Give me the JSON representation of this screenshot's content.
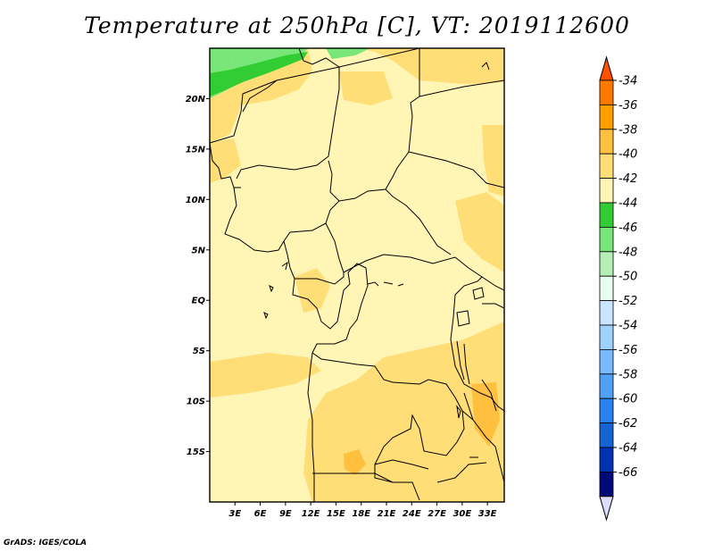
{
  "title": "Temperature at 250hPa [C], VT: 2019112600",
  "footer": "GrADS: IGES/COLA",
  "map": {
    "lon_range": [
      0,
      35
    ],
    "lat_range": [
      -20,
      25
    ],
    "lat_labels": [
      "20N",
      "15N",
      "10N",
      "5N",
      "EQ",
      "5S",
      "10S",
      "15S"
    ],
    "lat_values": [
      20,
      15,
      10,
      5,
      0,
      -5,
      -10,
      -15
    ],
    "lon_labels": [
      "3E",
      "6E",
      "9E",
      "12E",
      "15E",
      "18E",
      "21E",
      "24E",
      "27E",
      "30E",
      "33E"
    ],
    "lon_values": [
      3,
      6,
      9,
      12,
      15,
      18,
      21,
      24,
      27,
      30,
      33
    ],
    "dominant_range_C": [
      -44,
      -42
    ],
    "warmer_zones_C": [
      -42,
      -40
    ],
    "warmest_patch_C": [
      -40,
      -38
    ],
    "coldest_region": "northwest corner, -48 to -44 C"
  },
  "colorbar": {
    "labels": [
      "-34",
      "-36",
      "-38",
      "-40",
      "-42",
      "-44",
      "-46",
      "-48",
      "-50",
      "-52",
      "-54",
      "-56",
      "-58",
      "-60",
      "-62",
      "-64",
      "-66"
    ],
    "colors": [
      "#ff5000",
      "#ff7800",
      "#ffa000",
      "#ffc040",
      "#ffde78",
      "#fff5b4",
      "#32cd32",
      "#78e678",
      "#b4f0b4",
      "#e6fff0",
      "#c8e6ff",
      "#a0d2ff",
      "#78b9ff",
      "#50a0f5",
      "#2882f0",
      "#1464d2",
      "#0032b4",
      "#000a78",
      "#dcdcff"
    ]
  }
}
